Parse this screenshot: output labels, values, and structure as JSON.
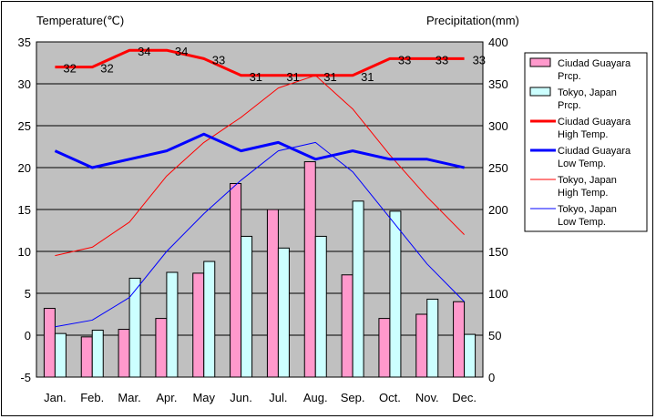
{
  "chart_data": {
    "type": "bar+line",
    "categories": [
      "Jan.",
      "Feb.",
      "Mar.",
      "Apr.",
      "May",
      "Jun.",
      "Jul.",
      "Aug.",
      "Sep.",
      "Oct.",
      "Nov.",
      "Dec."
    ],
    "y_left_label": "Temperature(℃)",
    "y_right_label": "Precipitation(mm)",
    "y_left_range": [
      -5,
      35
    ],
    "y_left_ticks": [
      "-5",
      "0",
      "5",
      "10",
      "15",
      "20",
      "25",
      "30",
      "35"
    ],
    "y_right_range": [
      0,
      400
    ],
    "y_right_ticks": [
      "0",
      "50",
      "100",
      "150",
      "200",
      "250",
      "300",
      "350",
      "400"
    ],
    "grid": true,
    "legend_position": "right",
    "bar_series": [
      {
        "name": "Ciudad Guayara Prcp.",
        "legend": [
          "Ciudad Guayara",
          "Prcp."
        ],
        "color": "#ff99cc",
        "values": [
          82,
          48,
          57,
          70,
          124,
          231,
          200,
          257,
          122,
          70,
          75,
          90
        ]
      },
      {
        "name": "Tokyo, Japan Prcp.",
        "legend": [
          "Tokyo, Japan",
          "Prcp."
        ],
        "color": "#ccffff",
        "values": [
          52,
          56,
          118,
          125,
          138,
          168,
          154,
          168,
          210,
          198,
          93,
          51
        ]
      }
    ],
    "line_series": [
      {
        "name": "Ciudad Guayara High Temp.",
        "legend": [
          "Ciudad Guayara",
          "High Temp."
        ],
        "color": "#ff0000",
        "width": 3,
        "values": [
          32,
          32,
          34,
          34,
          33,
          31,
          31,
          31,
          31,
          33,
          33,
          33
        ],
        "labels": [
          "32",
          "32",
          "34",
          "34",
          "33",
          "31",
          "31",
          "31",
          "31",
          "33",
          "33",
          "33"
        ]
      },
      {
        "name": "Ciudad Guayara Low Temp.",
        "legend": [
          "Ciudad Guayara",
          "Low Temp."
        ],
        "color": "#0000ff",
        "width": 3,
        "values": [
          22,
          20,
          21,
          22,
          24,
          22,
          23,
          21,
          22,
          21,
          21,
          20
        ]
      },
      {
        "name": "Tokyo, Japan High Temp.",
        "legend": [
          "Tokyo, Japan",
          "High Temp."
        ],
        "color": "#ff0000",
        "width": 1,
        "values": [
          9.5,
          10.5,
          13.5,
          19,
          23,
          26,
          29.5,
          31,
          27,
          21.5,
          16.5,
          12
        ]
      },
      {
        "name": "Tokyo, Japan Low Temp.",
        "legend": [
          "Tokyo, Japan",
          "Low Temp."
        ],
        "color": "#0000ff",
        "width": 1,
        "values": [
          1,
          1.8,
          4.5,
          10,
          14.5,
          18.5,
          22,
          23,
          19.5,
          14,
          8.5,
          4
        ]
      }
    ]
  }
}
